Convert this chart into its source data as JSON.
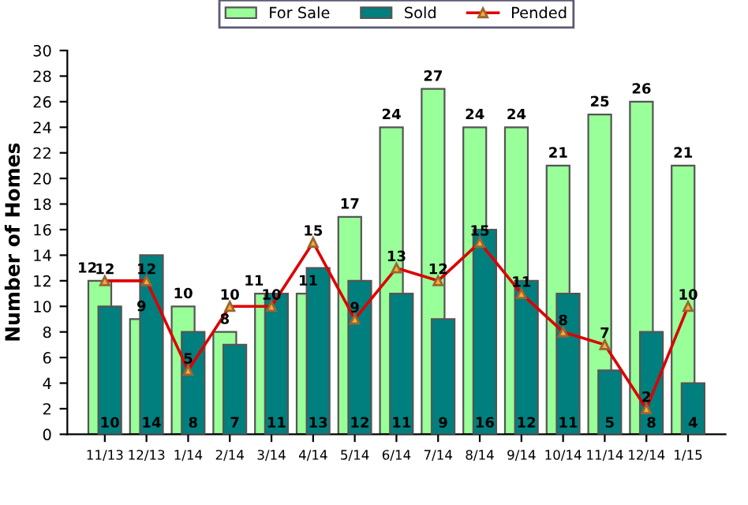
{
  "chart_data": {
    "type": "bar",
    "ylabel": "Number of Homes",
    "categories": [
      "11/13",
      "12/13",
      "1/14",
      "2/14",
      "3/14",
      "4/14",
      "5/14",
      "6/14",
      "7/14",
      "8/14",
      "9/14",
      "10/14",
      "11/14",
      "12/14",
      "1/15"
    ],
    "series": [
      {
        "name": "For Sale",
        "color": "#99ff99",
        "values": [
          12,
          9,
          10,
          8,
          11,
          11,
          17,
          24,
          27,
          24,
          24,
          21,
          25,
          26,
          21
        ]
      },
      {
        "name": "Sold",
        "color": "#007f7f",
        "values": [
          10,
          14,
          8,
          7,
          11,
          13,
          12,
          11,
          9,
          16,
          12,
          11,
          5,
          8,
          4
        ]
      },
      {
        "name": "Pended",
        "type": "line",
        "color": "#dd0000",
        "marker": "triangle",
        "values": [
          12,
          12,
          5,
          10,
          10,
          15,
          9,
          13,
          12,
          15,
          11,
          8,
          7,
          2,
          10
        ]
      }
    ],
    "ylim": [
      0,
      30
    ],
    "yticks": [
      0,
      2,
      4,
      6,
      8,
      10,
      12,
      14,
      16,
      18,
      20,
      22,
      24,
      26,
      28,
      30
    ],
    "data_labels": true,
    "legend": "top",
    "grid": false
  }
}
